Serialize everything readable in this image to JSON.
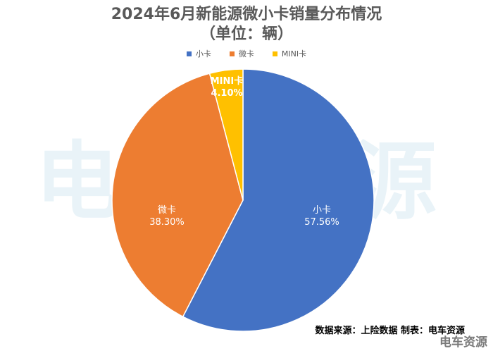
{
  "chart_data": {
    "type": "pie",
    "title": "2024年6月新能源微小卡销量分布情况",
    "subtitle": "（单位：辆）",
    "legend_position": "top",
    "slices": [
      {
        "label": "小卡",
        "value": 57.56,
        "display": "57.56%",
        "color": "#4472C4"
      },
      {
        "label": "微卡",
        "value": 38.3,
        "display": "38.30%",
        "color": "#ED7D31"
      },
      {
        "label": "MINI卡",
        "value": 4.1,
        "display": "4.10%",
        "color": "#FFC000"
      }
    ]
  },
  "source": "数据来源：上险数据  制表：电车资源",
  "watermark": {
    "text": "电车资源",
    "corner_text": "电车资源"
  }
}
